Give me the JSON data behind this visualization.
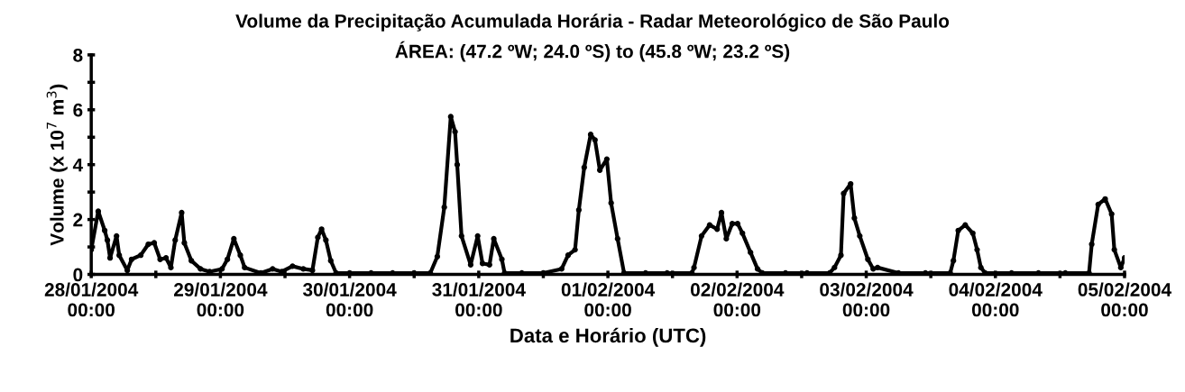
{
  "chart_data": {
    "type": "line",
    "title": "Volume da Precipitação Acumulada Horária - Radar Meteorológico de São Paulo",
    "subtitle": "ÁREA: (47.2 ºW; 24.0 ºS) to (45.8 ºW; 23.2 ºS)",
    "xlabel": "Data e Horário (UTC)",
    "ylabel": "Volume (x 10$^{7}$ m$^{3}$)",
    "x": [
      "2004-01-28T00:00",
      "2004-01-28T01:18",
      "2004-01-28T02:30",
      "2004-01-28T03:00",
      "2004-01-28T03:30",
      "2004-01-28T04:42",
      "2004-01-28T05:12",
      "2004-01-28T06:42",
      "2004-01-28T07:30",
      "2004-01-28T09:12",
      "2004-01-28T10:36",
      "2004-01-28T11:42",
      "2004-01-28T12:48",
      "2004-01-28T13:54",
      "2004-01-28T14:48",
      "2004-01-28T15:36",
      "2004-01-28T16:48",
      "2004-01-28T17:18",
      "2004-01-28T18:36",
      "2004-01-28T20:18",
      "2004-01-28T22:00",
      "2004-01-29T00:18",
      "2004-01-29T01:18",
      "2004-01-29T02:30",
      "2004-01-29T03:42",
      "2004-01-29T04:30",
      "2004-01-29T07:30",
      "2004-01-29T09:42",
      "2004-01-29T11:24",
      "2004-01-29T13:24",
      "2004-01-29T15:24",
      "2004-01-29T17:06",
      "2004-01-29T18:06",
      "2004-01-29T18:48",
      "2004-01-29T19:36",
      "2004-01-29T20:30",
      "2004-01-29T21:30",
      "2004-01-30T00:00",
      "2004-01-30T04:00",
      "2004-01-30T08:00",
      "2004-01-30T12:00",
      "2004-01-30T15:00",
      "2004-01-30T16:18",
      "2004-01-30T17:36",
      "2004-01-30T18:48",
      "2004-01-30T19:36",
      "2004-01-30T20:00",
      "2004-01-30T20:48",
      "2004-01-30T22:30",
      "2004-01-30T23:48",
      "2004-01-31T00:42",
      "2004-01-31T02:00",
      "2004-01-31T02:48",
      "2004-01-31T04:18",
      "2004-01-31T04:48",
      "2004-01-31T08:00",
      "2004-01-31T12:00",
      "2004-01-31T15:24",
      "2004-01-31T16:36",
      "2004-01-31T17:54",
      "2004-01-31T18:36",
      "2004-01-31T19:36",
      "2004-01-31T20:48",
      "2004-01-31T21:36",
      "2004-01-31T22:30",
      "2004-01-31T23:48",
      "2004-02-01T00:36",
      "2004-02-01T01:48",
      "2004-02-01T03:00",
      "2004-02-01T07:00",
      "2004-02-01T11:00",
      "2004-02-01T15:36",
      "2004-02-01T16:00",
      "2004-02-01T17:24",
      "2004-02-01T18:54",
      "2004-02-01T20:18",
      "2004-02-01T21:06",
      "2004-02-01T22:00",
      "2004-02-01T23:06",
      "2004-02-02T00:06",
      "2004-02-02T01:00",
      "2004-02-02T02:30",
      "2004-02-02T03:48",
      "2004-02-02T04:42",
      "2004-02-02T09:00",
      "2004-02-02T13:00",
      "2004-02-02T17:12",
      "2004-02-02T18:06",
      "2004-02-02T19:18",
      "2004-02-02T19:48",
      "2004-02-02T21:06",
      "2004-02-02T21:48",
      "2004-02-02T22:48",
      "2004-02-03T00:18",
      "2004-02-03T01:18",
      "2004-02-03T02:06",
      "2004-02-03T06:00",
      "2004-02-03T11:00",
      "2004-02-03T15:36",
      "2004-02-03T16:12",
      "2004-02-03T17:06",
      "2004-02-03T18:24",
      "2004-02-03T19:48",
      "2004-02-03T20:36",
      "2004-02-03T21:18",
      "2004-02-03T22:06",
      "2004-02-04T03:00",
      "2004-02-04T08:00",
      "2004-02-04T13:00",
      "2004-02-04T17:24",
      "2004-02-04T17:54",
      "2004-02-04T19:06",
      "2004-02-04T20:24",
      "2004-02-04T21:36",
      "2004-02-04T22:06",
      "2004-02-04T23:18",
      "2004-02-05T00:00"
    ],
    "series": [
      {
        "color": "#000000",
        "values": [
          0.9,
          2.3,
          1.6,
          1.25,
          0.6,
          1.4,
          0.7,
          0.15,
          0.55,
          0.7,
          1.1,
          1.15,
          0.55,
          0.6,
          0.25,
          1.25,
          2.25,
          1.15,
          0.5,
          0.2,
          0.1,
          0.2,
          0.55,
          1.3,
          0.7,
          0.25,
          0.05,
          0.2,
          0.1,
          0.3,
          0.2,
          0.15,
          1.35,
          1.65,
          1.25,
          0.5,
          0.05,
          0.05,
          0.05,
          0.05,
          0.05,
          0.05,
          0.65,
          2.45,
          5.75,
          5.2,
          4.0,
          1.4,
          0.35,
          1.4,
          0.4,
          0.35,
          1.3,
          0.55,
          0.05,
          0.05,
          0.05,
          0.2,
          0.7,
          0.9,
          2.35,
          3.9,
          5.1,
          4.9,
          3.8,
          4.2,
          2.6,
          1.3,
          0.05,
          0.05,
          0.05,
          0.05,
          0.25,
          1.4,
          1.8,
          1.65,
          2.25,
          1.3,
          1.85,
          1.85,
          1.5,
          0.8,
          0.2,
          0.05,
          0.05,
          0.05,
          0.05,
          0.25,
          0.7,
          2.95,
          3.3,
          2.05,
          1.4,
          0.55,
          0.2,
          0.25,
          0.05,
          0.05,
          0.05,
          0.5,
          1.6,
          1.8,
          1.5,
          0.9,
          0.25,
          0.05,
          0.05,
          0.05,
          0.05,
          0.05,
          1.1,
          2.55,
          2.75,
          2.2,
          0.9,
          0.25,
          0.6
        ]
      }
    ],
    "xlim": [
      "2004-01-28T00:00",
      "2004-02-05T00:00"
    ],
    "xticks": [
      {
        "value": "2004-01-28T00:00",
        "label": "28/01/2004\n00:00"
      },
      {
        "value": "2004-01-28T12:00",
        "label": null
      },
      {
        "value": "2004-01-29T00:00",
        "label": "29/01/2004\n00:00"
      },
      {
        "value": "2004-01-29T12:00",
        "label": null
      },
      {
        "value": "2004-01-30T00:00",
        "label": "30/01/2004\n00:00"
      },
      {
        "value": "2004-01-30T12:00",
        "label": null
      },
      {
        "value": "2004-01-31T00:00",
        "label": "31/01/2004\n00:00"
      },
      {
        "value": "2004-01-31T12:00",
        "label": null
      },
      {
        "value": "2004-02-01T00:00",
        "label": "01/02/2004\n00:00"
      },
      {
        "value": "2004-02-01T12:00",
        "label": null
      },
      {
        "value": "2004-02-02T00:00",
        "label": "02/02/2004\n00:00"
      },
      {
        "value": "2004-02-02T12:00",
        "label": null
      },
      {
        "value": "2004-02-03T00:00",
        "label": "03/02/2004\n00:00"
      },
      {
        "value": "2004-02-03T12:00",
        "label": null
      },
      {
        "value": "2004-02-04T00:00",
        "label": "04/02/2004\n00:00"
      },
      {
        "value": "2004-02-04T12:00",
        "label": null
      },
      {
        "value": "2004-02-05T00:00",
        "label": "05/02/2004\n00:00"
      }
    ],
    "ylim": [
      0,
      8
    ],
    "yticks": [
      0,
      {
        "value": 1,
        "label": null
      },
      2,
      {
        "value": 3,
        "label": null
      },
      4,
      {
        "value": 5,
        "label": null
      },
      6,
      {
        "value": 7,
        "label": null
      },
      8
    ],
    "marker": "circle",
    "line_style": "solid",
    "grid": false,
    "legend": false
  }
}
